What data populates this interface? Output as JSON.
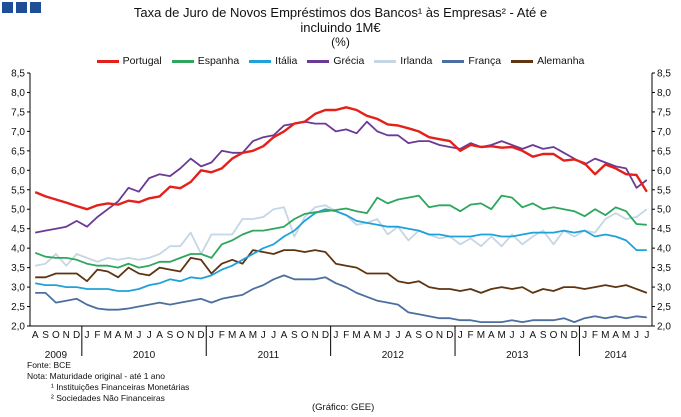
{
  "title": {
    "line1": "Taxa de Juro de Novos Empréstimos dos Bancos¹ às Empresas² - Até e",
    "line2": "incluindo 1M€",
    "unit": "(%)"
  },
  "notes": {
    "source": "Fonte: BCE",
    "note": "Nota: Maturidade original - até 1 ano",
    "fn1": "¹ Instituições Financeiras Monetárias",
    "fn2": "² Sociedades Não Financeiras"
  },
  "credit": "(Gráfico: GEE)",
  "chart_data": {
    "type": "line",
    "title": "Taxa de Juro de Novos Empréstimos dos Bancos¹ às Empresas² - Até e incluindo 1M€ (%)",
    "xlabel": "",
    "ylabel": "%",
    "ylim": [
      2.0,
      8.5
    ],
    "yticks": [
      "2,0",
      "2,5",
      "3,0",
      "3,5",
      "4,0",
      "4,5",
      "5,0",
      "5,5",
      "6,0",
      "6,5",
      "7,0",
      "7,5",
      "8,0",
      "8,5"
    ],
    "categories": [
      "A",
      "S",
      "O",
      "N",
      "D",
      "J",
      "F",
      "M",
      "A",
      "M",
      "J",
      "J",
      "A",
      "S",
      "O",
      "N",
      "D",
      "J",
      "F",
      "M",
      "A",
      "M",
      "J",
      "J",
      "A",
      "S",
      "O",
      "N",
      "D",
      "J",
      "F",
      "M",
      "A",
      "M",
      "J",
      "J",
      "A",
      "S",
      "O",
      "N",
      "D",
      "J",
      "F",
      "M",
      "A",
      "M",
      "J",
      "J",
      "A",
      "S",
      "O",
      "N",
      "D",
      "J",
      "F",
      "M",
      "A",
      "M",
      "J",
      "J"
    ],
    "years": [
      {
        "label": "2009",
        "start": 0,
        "end": 4
      },
      {
        "label": "2010",
        "start": 5,
        "end": 16
      },
      {
        "label": "2011",
        "start": 17,
        "end": 28
      },
      {
        "label": "2012",
        "start": 29,
        "end": 40
      },
      {
        "label": "2013",
        "start": 41,
        "end": 52
      },
      {
        "label": "2014",
        "start": 53,
        "end": 59
      }
    ],
    "grid": false,
    "legend_position": "top",
    "series": [
      {
        "name": "Portugal",
        "color": "#e3211b",
        "values": [
          5.44,
          5.33,
          5.25,
          5.17,
          5.08,
          5.0,
          5.1,
          5.15,
          5.12,
          5.22,
          5.18,
          5.28,
          5.33,
          5.58,
          5.54,
          5.7,
          6.0,
          5.95,
          6.05,
          6.3,
          6.45,
          6.5,
          6.62,
          6.85,
          7.0,
          7.2,
          7.25,
          7.45,
          7.55,
          7.55,
          7.62,
          7.55,
          7.4,
          7.32,
          7.18,
          7.15,
          7.08,
          7.0,
          6.85,
          6.8,
          6.75,
          6.5,
          6.65,
          6.6,
          6.62,
          6.58,
          6.6,
          6.5,
          6.35,
          6.42,
          6.42,
          6.25,
          6.28,
          6.18,
          5.9,
          6.15,
          6.05,
          5.9,
          5.88,
          5.45
        ]
      },
      {
        "name": "Espanha",
        "color": "#2ea65e",
        "values": [
          3.88,
          3.78,
          3.75,
          3.75,
          3.7,
          3.6,
          3.55,
          3.55,
          3.5,
          3.6,
          3.5,
          3.55,
          3.65,
          3.65,
          3.75,
          3.85,
          3.85,
          3.75,
          4.1,
          4.2,
          4.35,
          4.45,
          4.45,
          4.5,
          4.55,
          4.75,
          4.88,
          4.92,
          4.95,
          4.98,
          5.02,
          4.95,
          4.9,
          5.3,
          5.15,
          5.25,
          5.3,
          5.35,
          5.05,
          5.1,
          5.1,
          4.95,
          5.12,
          5.15,
          5.0,
          5.35,
          5.3,
          5.05,
          5.15,
          5.0,
          5.05,
          5.0,
          4.95,
          4.82,
          5.0,
          4.85,
          5.05,
          4.95,
          4.62,
          4.6
        ]
      },
      {
        "name": "Itália",
        "color": "#1ea2d9",
        "values": [
          3.1,
          3.05,
          3.05,
          3.0,
          3.0,
          2.95,
          2.95,
          2.95,
          2.9,
          2.9,
          2.95,
          3.05,
          3.1,
          3.2,
          3.15,
          3.25,
          3.22,
          3.3,
          3.45,
          3.55,
          3.7,
          3.85,
          4.0,
          4.1,
          4.3,
          4.45,
          4.7,
          4.9,
          5.0,
          4.95,
          4.85,
          4.7,
          4.65,
          4.6,
          4.55,
          4.55,
          4.5,
          4.45,
          4.35,
          4.35,
          4.3,
          4.3,
          4.3,
          4.35,
          4.35,
          4.3,
          4.3,
          4.35,
          4.4,
          4.4,
          4.4,
          4.45,
          4.4,
          4.45,
          4.3,
          4.35,
          4.3,
          4.2,
          3.95,
          3.95
        ]
      },
      {
        "name": "Grécia",
        "color": "#6b3a96",
        "values": [
          4.4,
          4.45,
          4.5,
          4.55,
          4.7,
          4.55,
          4.8,
          5.0,
          5.2,
          5.55,
          5.45,
          5.8,
          5.9,
          5.85,
          6.05,
          6.3,
          6.1,
          6.2,
          6.5,
          6.45,
          6.45,
          6.75,
          6.85,
          6.9,
          7.15,
          7.2,
          7.25,
          7.2,
          7.2,
          7.0,
          7.05,
          6.95,
          7.25,
          7.0,
          6.9,
          6.9,
          6.7,
          6.75,
          6.75,
          6.65,
          6.6,
          6.55,
          6.7,
          6.6,
          6.65,
          6.75,
          6.65,
          6.55,
          6.65,
          6.55,
          6.6,
          6.45,
          6.3,
          6.15,
          6.3,
          6.2,
          6.1,
          6.05,
          5.55,
          5.75
        ]
      },
      {
        "name": "Irlanda",
        "color": "#c5d6e5",
        "values": [
          3.55,
          3.6,
          3.85,
          3.55,
          3.85,
          3.75,
          3.65,
          3.75,
          3.7,
          3.75,
          3.7,
          3.75,
          3.85,
          4.05,
          4.05,
          4.4,
          3.85,
          4.35,
          4.35,
          4.35,
          4.75,
          4.75,
          4.8,
          5.0,
          5.05,
          4.3,
          4.8,
          5.05,
          5.1,
          4.95,
          4.85,
          4.6,
          4.65,
          4.75,
          4.35,
          4.55,
          4.2,
          4.45,
          4.35,
          4.25,
          4.3,
          4.1,
          4.25,
          4.05,
          4.3,
          4.05,
          4.35,
          4.1,
          4.3,
          4.45,
          4.1,
          4.45,
          4.3,
          4.45,
          4.4,
          4.75,
          4.9,
          4.75,
          4.8,
          5.0
        ]
      },
      {
        "name": "França",
        "color": "#4b6f9f",
        "values": [
          2.85,
          2.85,
          2.6,
          2.65,
          2.7,
          2.55,
          2.45,
          2.42,
          2.42,
          2.45,
          2.5,
          2.55,
          2.6,
          2.55,
          2.6,
          2.65,
          2.7,
          2.6,
          2.7,
          2.75,
          2.8,
          2.95,
          3.05,
          3.2,
          3.3,
          3.2,
          3.2,
          3.2,
          3.25,
          3.1,
          3.0,
          2.85,
          2.75,
          2.65,
          2.6,
          2.55,
          2.35,
          2.3,
          2.25,
          2.2,
          2.2,
          2.15,
          2.15,
          2.1,
          2.1,
          2.1,
          2.15,
          2.1,
          2.15,
          2.15,
          2.15,
          2.2,
          2.1,
          2.2,
          2.25,
          2.2,
          2.25,
          2.2,
          2.25,
          2.22
        ]
      },
      {
        "name": "Alemanha",
        "color": "#5e3510",
        "values": [
          3.25,
          3.25,
          3.35,
          3.35,
          3.35,
          3.15,
          3.45,
          3.4,
          3.25,
          3.5,
          3.35,
          3.3,
          3.5,
          3.45,
          3.4,
          3.75,
          3.7,
          3.35,
          3.6,
          3.7,
          3.6,
          3.95,
          3.9,
          3.85,
          3.95,
          3.95,
          3.9,
          3.95,
          3.9,
          3.6,
          3.55,
          3.5,
          3.35,
          3.35,
          3.35,
          3.15,
          3.1,
          3.15,
          3.0,
          2.95,
          2.95,
          2.9,
          2.95,
          2.85,
          2.95,
          3.0,
          2.95,
          3.0,
          2.85,
          2.95,
          2.9,
          3.0,
          3.0,
          2.95,
          3.0,
          3.05,
          3.0,
          3.05,
          2.95,
          2.85
        ]
      }
    ]
  }
}
